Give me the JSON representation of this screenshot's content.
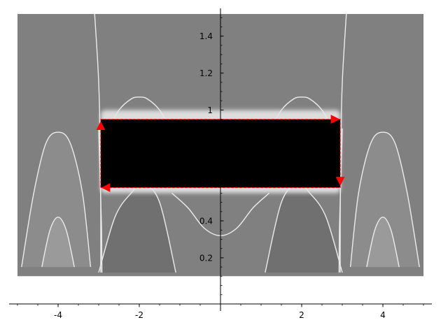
{
  "chart_data": {
    "type": "contour",
    "title": "",
    "xlabel": "",
    "ylabel": "",
    "xlim": [
      -5,
      5
    ],
    "ylim": [
      -0.05,
      1.52
    ],
    "plot_y_range": [
      0.1,
      1.52
    ],
    "grid": false,
    "x_ticks": [
      {
        "value": -4,
        "label": "-4"
      },
      {
        "value": -2,
        "label": "-2"
      },
      {
        "value": 2,
        "label": "2"
      },
      {
        "value": 4,
        "label": "4"
      }
    ],
    "y_ticks": [
      {
        "value": 0.2,
        "label": "0.2"
      },
      {
        "value": 0.4,
        "label": "0.4"
      },
      {
        "value": 1.0,
        "label": "1"
      },
      {
        "value": 1.2,
        "label": "1.2"
      },
      {
        "value": 1.4,
        "label": "1.4"
      }
    ],
    "contour_lines": [
      {
        "name": "outer-left-loop",
        "x": [
          -4.9,
          -4.6,
          -4.3,
          -4.0,
          -3.7,
          -3.4,
          -3.2
        ],
        "y": [
          0.15,
          0.55,
          0.82,
          0.88,
          0.82,
          0.55,
          0.15
        ]
      },
      {
        "name": "outer-right-loop",
        "x": [
          3.2,
          3.4,
          3.7,
          4.0,
          4.3,
          4.6,
          4.9
        ],
        "y": [
          0.15,
          0.55,
          0.82,
          0.88,
          0.82,
          0.55,
          0.15
        ]
      },
      {
        "name": "inner-left-loop",
        "x": [
          -4.4,
          -4.2,
          -4.0,
          -3.8,
          -3.6
        ],
        "y": [
          0.15,
          0.35,
          0.42,
          0.35,
          0.15
        ]
      },
      {
        "name": "inner-right-loop",
        "x": [
          3.6,
          3.8,
          4.0,
          4.2,
          4.4
        ],
        "y": [
          0.15,
          0.35,
          0.42,
          0.35,
          0.15
        ]
      },
      {
        "name": "upper-left-arch",
        "x": [
          -2.75,
          -2.5,
          -2.2,
          -2.0,
          -1.8,
          -1.5,
          -1.25
        ],
        "y": [
          0.9,
          1.0,
          1.06,
          1.07,
          1.06,
          1.0,
          0.9
        ]
      },
      {
        "name": "upper-right-arch",
        "x": [
          1.25,
          1.5,
          1.8,
          2.0,
          2.2,
          2.5,
          2.75
        ],
        "y": [
          0.9,
          1.0,
          1.06,
          1.07,
          1.06,
          1.0,
          0.9
        ]
      },
      {
        "name": "center-dip",
        "x": [
          -1.2,
          -0.8,
          -0.4,
          0.0,
          0.4,
          0.8,
          1.2
        ],
        "y": [
          0.55,
          0.47,
          0.36,
          0.32,
          0.36,
          0.47,
          0.55
        ]
      },
      {
        "name": "lower-left-arch",
        "x": [
          -3.0,
          -2.6,
          -2.2,
          -1.9,
          -1.5,
          -1.1
        ],
        "y": [
          0.12,
          0.42,
          0.55,
          0.6,
          0.5,
          0.12
        ]
      },
      {
        "name": "lower-right-arch",
        "x": [
          1.1,
          1.5,
          1.9,
          2.2,
          2.6,
          3.0
        ],
        "y": [
          0.12,
          0.5,
          0.6,
          0.55,
          0.42,
          0.12
        ]
      },
      {
        "name": "left-vertical-1",
        "x": [
          -3.1,
          -3.05,
          -3.0,
          -2.97,
          -2.95,
          -2.95
        ],
        "y": [
          1.52,
          1.35,
          1.15,
          0.9,
          0.5,
          0.12
        ]
      },
      {
        "name": "left-vertical-2",
        "x": [
          -3.0,
          -2.96,
          -2.93,
          -2.92
        ],
        "y": [
          0.9,
          0.6,
          0.35,
          0.12
        ]
      },
      {
        "name": "right-vertical-1",
        "x": [
          3.1,
          3.05,
          3.0,
          2.97,
          2.95,
          2.95
        ],
        "y": [
          1.52,
          1.35,
          1.15,
          0.9,
          0.5,
          0.12
        ]
      },
      {
        "name": "right-vertical-2",
        "x": [
          3.0,
          2.96,
          2.93,
          2.92
        ],
        "y": [
          0.9,
          0.6,
          0.35,
          0.12
        ]
      }
    ],
    "black_region": {
      "x": [
        -2.95,
        2.95
      ],
      "y": [
        0.58,
        0.95
      ]
    },
    "halo_region": {
      "x": [
        -2.95,
        2.95
      ],
      "y": [
        0.55,
        1.0
      ]
    },
    "path": {
      "color": "#ff0000",
      "points": [
        {
          "x": -2.95,
          "y": 0.58
        },
        {
          "x": -2.95,
          "y": 0.95
        },
        {
          "x": 2.95,
          "y": 0.95
        },
        {
          "x": 2.95,
          "y": 0.58
        },
        {
          "x": -2.95,
          "y": 0.58
        }
      ],
      "arrows": [
        {
          "x": -2.95,
          "y": 0.91,
          "direction": "up"
        },
        {
          "x": 2.8,
          "y": 0.95,
          "direction": "right"
        },
        {
          "x": 2.95,
          "y": 0.62,
          "direction": "down"
        },
        {
          "x": -2.8,
          "y": 0.58,
          "direction": "left"
        }
      ]
    },
    "colors": {
      "background": "#808080",
      "outer_lobes": "#8c8c8c",
      "inner_lobes": "#9a9a9a",
      "inner_arch": "#707070",
      "contour_line": "#ececec",
      "region": "#000000",
      "axis": "#000000"
    }
  }
}
